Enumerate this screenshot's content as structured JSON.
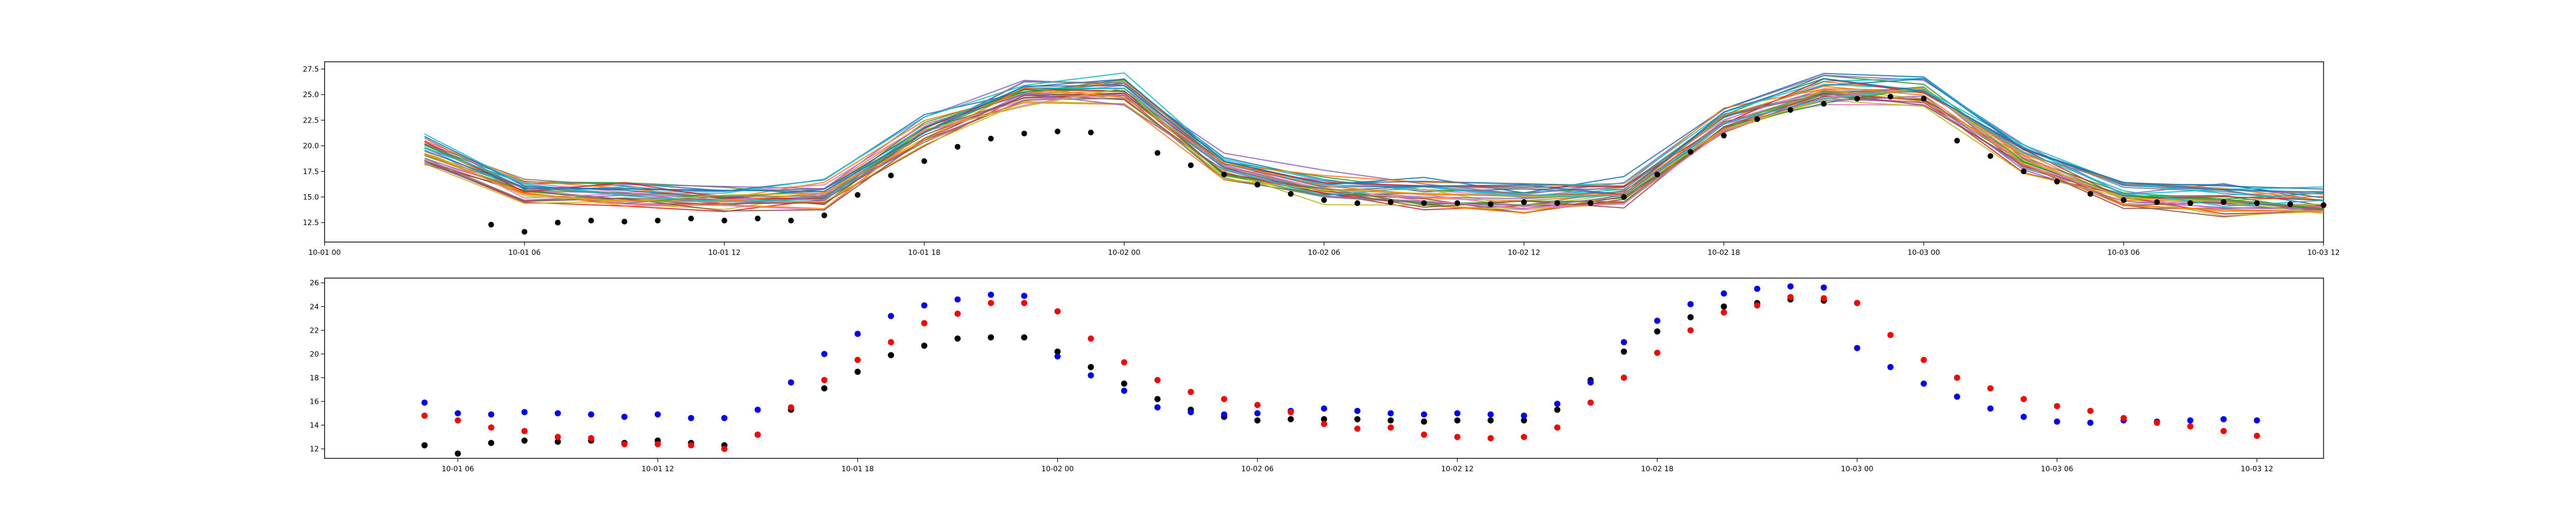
{
  "chart_data": [
    {
      "type": "line",
      "title": "",
      "xlabel": "",
      "ylabel": "",
      "x_domain": [
        "10-01 00",
        "10-03 12"
      ],
      "ylim": [
        10.6,
        28.2
      ],
      "grid": false,
      "legend": "none",
      "x_ticks": [
        "10-01 00",
        "10-01 06",
        "10-01 12",
        "10-01 18",
        "10-02 00",
        "10-02 06",
        "10-02 12",
        "10-02 18",
        "10-03 00",
        "10-03 06",
        "10-03 12"
      ],
      "y_ticks": [
        "12.5",
        "15.0",
        "17.5",
        "20.0",
        "22.5",
        "25.0",
        "27.5"
      ],
      "ensemble": {
        "member_count": 32,
        "colors": [
          "#1f77b4",
          "#ff7f0e",
          "#2ca02c",
          "#d62728",
          "#9467bd",
          "#8c564b",
          "#e377c2",
          "#7f7f7f",
          "#bcbd22",
          "#17becf"
        ],
        "x": [
          "10-01 03",
          "10-01 06",
          "10-01 09",
          "10-01 12",
          "10-01 15",
          "10-01 18",
          "10-01 21",
          "10-02 00",
          "10-02 03",
          "10-02 06",
          "10-02 09",
          "10-02 12",
          "10-02 15",
          "10-02 18",
          "10-02 21",
          "10-03 00",
          "10-03 03",
          "10-03 06",
          "10-03 09",
          "10-03 12"
        ],
        "mean": [
          19.8,
          15.8,
          15.2,
          15.0,
          15.2,
          21.5,
          25.3,
          25.5,
          18.0,
          16.0,
          15.5,
          15.0,
          15.5,
          22.5,
          25.5,
          25.5,
          19.0,
          15.2,
          14.8,
          14.5
        ],
        "spread": 1.2
      },
      "series": [
        {
          "marker": "o",
          "color": "#000000",
          "x": [
            "10-01 05",
            "10-01 06",
            "10-01 07",
            "10-01 08",
            "10-01 09",
            "10-01 10",
            "10-01 11",
            "10-01 12",
            "10-01 13",
            "10-01 14",
            "10-01 15",
            "10-01 16",
            "10-01 17",
            "10-01 18",
            "10-01 19",
            "10-01 20",
            "10-01 21",
            "10-01 22",
            "10-01 23",
            "10-02 01",
            "10-02 02",
            "10-02 03",
            "10-02 04",
            "10-02 05",
            "10-02 06",
            "10-02 07",
            "10-02 08",
            "10-02 09",
            "10-02 10",
            "10-02 11",
            "10-02 12",
            "10-02 13",
            "10-02 14",
            "10-02 15",
            "10-02 16",
            "10-02 17",
            "10-02 18",
            "10-02 19",
            "10-02 20",
            "10-02 21",
            "10-02 22",
            "10-02 23",
            "10-03 00",
            "10-03 01",
            "10-03 02",
            "10-03 03",
            "10-03 04",
            "10-03 05",
            "10-03 06",
            "10-03 07",
            "10-03 08",
            "10-03 09",
            "10-03 10",
            "10-03 11",
            "10-03 12"
          ],
          "y": [
            12.3,
            11.6,
            12.5,
            12.7,
            12.6,
            12.7,
            12.9,
            12.7,
            12.9,
            12.7,
            13.2,
            15.2,
            17.1,
            18.5,
            19.9,
            20.7,
            21.2,
            21.4,
            21.3,
            19.3,
            18.1,
            17.2,
            16.2,
            15.3,
            14.7,
            14.4,
            14.5,
            14.4,
            14.4,
            14.3,
            14.5,
            14.4,
            14.4,
            15.0,
            17.2,
            19.4,
            21.0,
            22.6,
            23.5,
            24.1,
            24.6,
            24.8,
            24.6,
            20.5,
            19.0,
            17.5,
            16.5,
            15.3,
            14.7,
            14.5,
            14.4,
            14.5,
            14.4,
            14.3,
            14.2
          ]
        }
      ]
    },
    {
      "type": "scatter",
      "title": "",
      "xlabel": "",
      "ylabel": "",
      "x_domain": [
        "10-01 02",
        "10-03 14"
      ],
      "ylim": [
        11.2,
        26.4
      ],
      "grid": false,
      "legend": "none",
      "x_ticks": [
        "10-01 06",
        "10-01 12",
        "10-01 18",
        "10-02 00",
        "10-02 06",
        "10-02 12",
        "10-02 18",
        "10-03 00",
        "10-03 06",
        "10-03 12"
      ],
      "y_ticks": [
        "12",
        "14",
        "16",
        "18",
        "20",
        "22",
        "24",
        "26"
      ],
      "series": [
        {
          "marker": "o",
          "color": "#000000",
          "x": [
            "10-01 05",
            "10-01 06",
            "10-01 07",
            "10-01 08",
            "10-01 09",
            "10-01 10",
            "10-01 11",
            "10-01 12",
            "10-01 13",
            "10-01 14",
            "10-01 15",
            "10-01 16",
            "10-01 17",
            "10-01 18",
            "10-01 19",
            "10-01 20",
            "10-01 21",
            "10-01 22",
            "10-01 23",
            "10-02 00",
            "10-02 01",
            "10-02 02",
            "10-02 03",
            "10-02 04",
            "10-02 05",
            "10-02 06",
            "10-02 07",
            "10-02 08",
            "10-02 09",
            "10-02 10",
            "10-02 11",
            "10-02 12",
            "10-02 13",
            "10-02 14",
            "10-02 15",
            "10-02 16",
            "10-02 17",
            "10-02 18",
            "10-02 19",
            "10-02 20",
            "10-02 21",
            "10-02 22",
            "10-02 23",
            "10-03 00"
          ],
          "y": [
            12.3,
            11.6,
            12.5,
            12.7,
            12.6,
            12.7,
            12.5,
            12.7,
            12.5,
            12.3,
            13.2,
            15.3,
            17.1,
            18.5,
            19.9,
            20.7,
            21.3,
            21.4,
            21.4,
            20.2,
            18.9,
            17.5,
            16.2,
            15.3,
            14.7,
            14.4,
            14.5,
            14.5,
            14.5,
            14.4,
            14.3,
            14.4,
            14.4,
            14.4,
            15.3,
            17.8,
            20.2,
            21.9,
            23.1,
            24.0,
            24.3,
            24.6,
            24.5,
            24.3
          ]
        },
        {
          "marker": "o",
          "color": "#0000ff",
          "x": [
            "10-01 05",
            "10-01 06",
            "10-01 07",
            "10-01 08",
            "10-01 09",
            "10-01 10",
            "10-01 11",
            "10-01 12",
            "10-01 13",
            "10-01 14",
            "10-01 15",
            "10-01 16",
            "10-01 17",
            "10-01 18",
            "10-01 19",
            "10-01 20",
            "10-01 21",
            "10-01 22",
            "10-01 23",
            "10-02 00",
            "10-02 01",
            "10-02 02",
            "10-02 03",
            "10-02 04",
            "10-02 05",
            "10-02 06",
            "10-02 07",
            "10-02 08",
            "10-02 09",
            "10-02 10",
            "10-02 11",
            "10-02 12",
            "10-02 13",
            "10-02 14",
            "10-02 15",
            "10-02 16",
            "10-02 17",
            "10-02 18",
            "10-02 19",
            "10-02 20",
            "10-02 21",
            "10-02 22",
            "10-02 23",
            "10-03 00",
            "10-03 01",
            "10-03 02",
            "10-03 03",
            "10-03 04",
            "10-03 05",
            "10-03 06",
            "10-03 07",
            "10-03 08",
            "10-03 09",
            "10-03 10",
            "10-03 11",
            "10-03 12"
          ],
          "y": [
            15.9,
            15.0,
            14.9,
            15.1,
            15.0,
            14.9,
            14.7,
            14.9,
            14.6,
            14.6,
            15.3,
            17.6,
            20.0,
            21.7,
            23.2,
            24.1,
            24.6,
            25.0,
            24.9,
            19.8,
            18.2,
            16.9,
            15.5,
            15.1,
            14.9,
            15.0,
            15.2,
            15.4,
            15.2,
            15.0,
            14.9,
            15.0,
            14.9,
            14.8,
            15.8,
            17.6,
            21.0,
            22.8,
            24.2,
            25.1,
            25.5,
            25.7,
            25.6,
            20.5,
            18.9,
            17.5,
            16.4,
            15.4,
            14.7,
            14.3,
            14.2,
            14.4,
            14.3,
            14.4,
            14.5,
            14.4
          ]
        },
        {
          "marker": "o",
          "color": "#ff0000",
          "x": [
            "10-01 05",
            "10-01 06",
            "10-01 07",
            "10-01 08",
            "10-01 09",
            "10-01 10",
            "10-01 11",
            "10-01 12",
            "10-01 13",
            "10-01 14",
            "10-01 15",
            "10-01 16",
            "10-01 17",
            "10-01 18",
            "10-01 19",
            "10-01 20",
            "10-01 21",
            "10-01 22",
            "10-01 23",
            "10-02 00",
            "10-02 01",
            "10-02 02",
            "10-02 03",
            "10-02 04",
            "10-02 05",
            "10-02 06",
            "10-02 07",
            "10-02 08",
            "10-02 09",
            "10-02 10",
            "10-02 11",
            "10-02 12",
            "10-02 13",
            "10-02 14",
            "10-02 15",
            "10-02 16",
            "10-02 17",
            "10-02 18",
            "10-02 19",
            "10-02 20",
            "10-02 21",
            "10-02 22",
            "10-02 23",
            "10-03 00",
            "10-03 01",
            "10-03 02",
            "10-03 03",
            "10-03 04",
            "10-03 05",
            "10-03 06",
            "10-03 07",
            "10-03 08",
            "10-03 09",
            "10-03 10",
            "10-03 11",
            "10-03 12"
          ],
          "y": [
            14.8,
            14.4,
            13.8,
            13.5,
            13.0,
            12.9,
            12.4,
            12.4,
            12.3,
            12.0,
            13.2,
            15.5,
            17.8,
            19.5,
            21.0,
            22.6,
            23.4,
            24.3,
            24.3,
            23.6,
            21.3,
            19.3,
            17.8,
            16.8,
            16.2,
            15.7,
            15.1,
            14.1,
            13.7,
            13.8,
            13.2,
            13.0,
            12.9,
            13.0,
            13.8,
            15.9,
            18.0,
            20.1,
            22.0,
            23.5,
            24.1,
            24.8,
            24.7,
            24.3,
            21.6,
            19.5,
            18.0,
            17.1,
            16.2,
            15.6,
            15.2,
            14.6,
            14.2,
            13.9,
            13.5,
            13.1
          ]
        }
      ]
    }
  ]
}
